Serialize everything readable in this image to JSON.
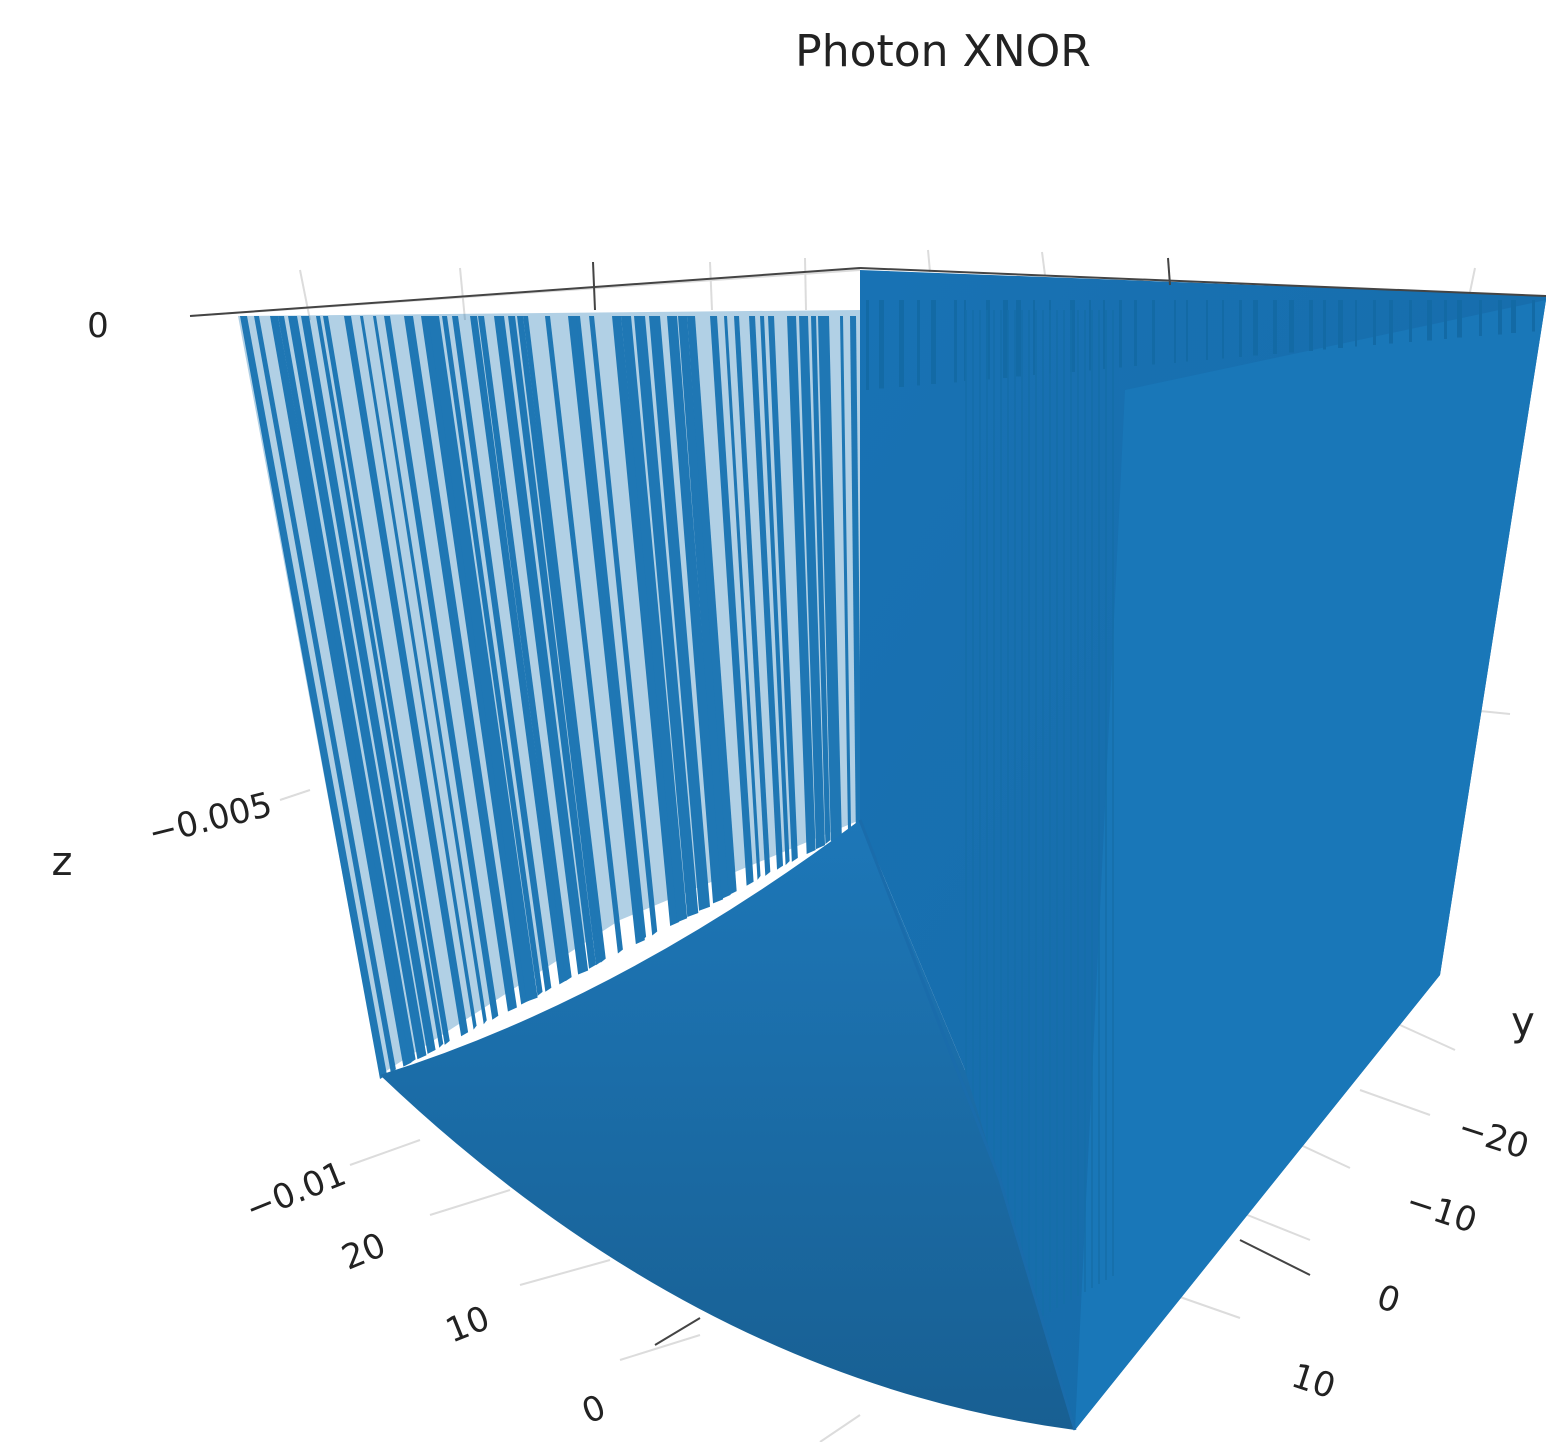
{
  "chart_data": {
    "type": "surface3d",
    "title": "Photon XNOR",
    "xlabel": "",
    "ylabel": "y",
    "zlabel": "z",
    "x_ticks": [
      "0",
      "10",
      "20"
    ],
    "y_ticks": [
      "−20",
      "−10",
      "0",
      "10"
    ],
    "z_ticks": [
      "0",
      "−0.005",
      "−0.01"
    ],
    "xlim": [
      -30,
      30
    ],
    "ylim": [
      -30,
      15
    ],
    "zlim": [
      -0.012,
      0
    ],
    "surface": {
      "description_values": {
        "z_top": 0,
        "z_bottom": -0.012,
        "bottom_curve_y": 0
      }
    },
    "colors": {
      "surface": "#1f77b4",
      "surface_dark": "#17609a",
      "grid": "#dcdcdc",
      "axis_line": "#444444"
    }
  }
}
